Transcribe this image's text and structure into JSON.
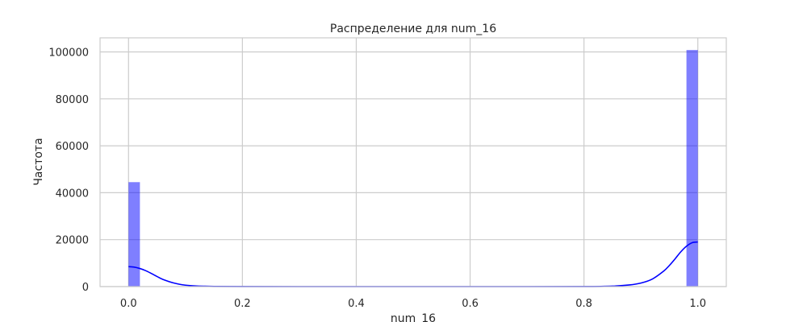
{
  "chart_data": {
    "type": "bar",
    "title": "Распределение для num_16",
    "xlabel": "num_16",
    "ylabel": "Частота",
    "xlim": [
      -0.05,
      1.05
    ],
    "ylim": [
      0,
      106000
    ],
    "x_ticks": [
      "0.0",
      "0.2",
      "0.4",
      "0.6",
      "0.8",
      "1.0"
    ],
    "y_ticks": [
      "0",
      "20000",
      "40000",
      "60000",
      "80000",
      "100000"
    ],
    "grid": true,
    "bar_color": "#0000ff",
    "bar_opacity": 0.5,
    "kde_color": "#0000ff",
    "bins": [
      {
        "x_start": 0.0,
        "x_end": 0.02,
        "count": 44500
      },
      {
        "x_start": 0.98,
        "x_end": 1.0,
        "count": 100800
      }
    ],
    "kde": {
      "x": [
        0.0,
        0.01,
        0.02,
        0.03,
        0.04,
        0.05,
        0.06,
        0.08,
        0.1,
        0.12,
        0.15,
        0.2,
        0.3,
        0.5,
        0.7,
        0.8,
        0.85,
        0.88,
        0.9,
        0.92,
        0.94,
        0.95,
        0.96,
        0.97,
        0.98,
        0.99,
        1.0
      ],
      "y": [
        8500,
        8300,
        7700,
        6800,
        5600,
        4300,
        3100,
        1500,
        600,
        250,
        80,
        20,
        0,
        0,
        0,
        20,
        200,
        700,
        1500,
        3200,
        6600,
        9000,
        11800,
        14800,
        17200,
        18700,
        19000
      ]
    }
  }
}
